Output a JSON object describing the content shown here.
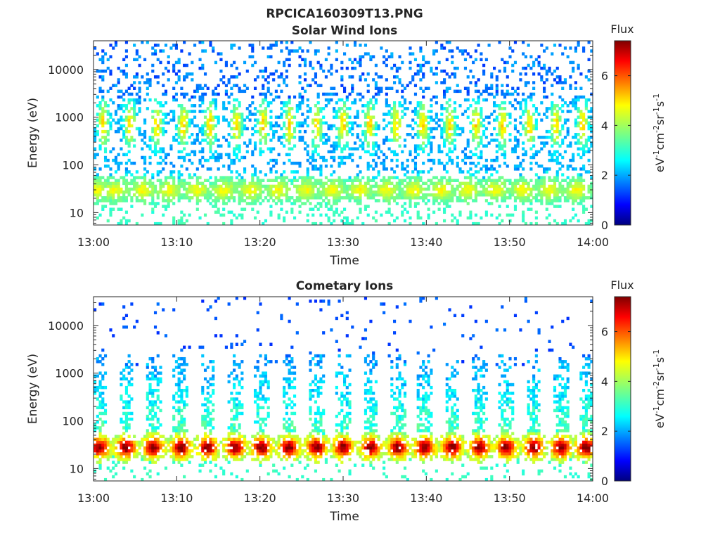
{
  "figure": {
    "filename_title": "RPCICA160309T13.PNG"
  },
  "colormap": {
    "name": "jet",
    "stops": [
      "#00007f",
      "#0000ff",
      "#007fff",
      "#00ffff",
      "#7fff7f",
      "#ffff00",
      "#ff7f00",
      "#ff0000",
      "#7f0000"
    ]
  },
  "chart_data": [
    {
      "type": "heatmap",
      "title": "Solar Wind Ions",
      "xlabel": "Time",
      "ylabel": "Energy (eV)",
      "x_ticks": [
        "13:00",
        "13:10",
        "13:20",
        "13:30",
        "13:40",
        "13:50",
        "14:00"
      ],
      "y_scale": "log",
      "y_ticks": [
        "10",
        "100",
        "1000",
        "10000"
      ],
      "ylim": [
        5.5,
        40000
      ],
      "time_range_minutes": [
        0,
        60
      ],
      "colorbar": {
        "title": "Flux",
        "label": "eV^-1 cm^-2 sr^-1 s^-1",
        "ticks": [
          "0",
          "2",
          "4",
          "6"
        ],
        "range": [
          0,
          7.4
        ]
      },
      "pattern": {
        "sweep_period_min": 3.2,
        "band_energy_eV": 30,
        "band_flux": 4.2,
        "band_bursts_min": [
          0.4,
          2.6,
          5.9,
          9.1,
          12.4,
          15.7,
          18.9,
          22.2,
          25.5,
          28.7,
          32.0,
          35.2,
          38.5,
          41.8,
          45.0,
          48.3,
          51.6,
          54.8,
          58.1
        ],
        "mid_energy_eV": 700,
        "mid_flux": 2.8,
        "high_energy_flux": 1.3
      }
    },
    {
      "type": "heatmap",
      "title": "Cometary Ions",
      "xlabel": "Time",
      "ylabel": "Energy (eV)",
      "x_ticks": [
        "13:00",
        "13:10",
        "13:20",
        "13:30",
        "13:40",
        "13:50",
        "14:00"
      ],
      "y_scale": "log",
      "y_ticks": [
        "10",
        "100",
        "1000",
        "10000"
      ],
      "ylim": [
        5.5,
        40000
      ],
      "time_range_minutes": [
        0,
        60
      ],
      "colorbar": {
        "title": "Flux",
        "label": "eV^-1 cm^-2 sr^-1 s^-1",
        "ticks": [
          "0",
          "2",
          "4",
          "6"
        ],
        "range": [
          0,
          7.4
        ]
      },
      "pattern": {
        "sweep_period_min": 3.2,
        "band_energy_eV": 28,
        "band_flux": 6.6,
        "band_bursts_min": [
          0.7,
          3.9,
          7.2,
          10.5,
          13.7,
          17.0,
          20.2,
          23.5,
          26.8,
          30.0,
          33.3,
          36.6,
          39.8,
          43.1,
          46.4,
          49.6,
          52.9,
          56.2,
          59.2
        ],
        "plume_top_eV": 1500,
        "plume_flux": 3.0,
        "high_energy_flux": 1.2
      }
    }
  ]
}
